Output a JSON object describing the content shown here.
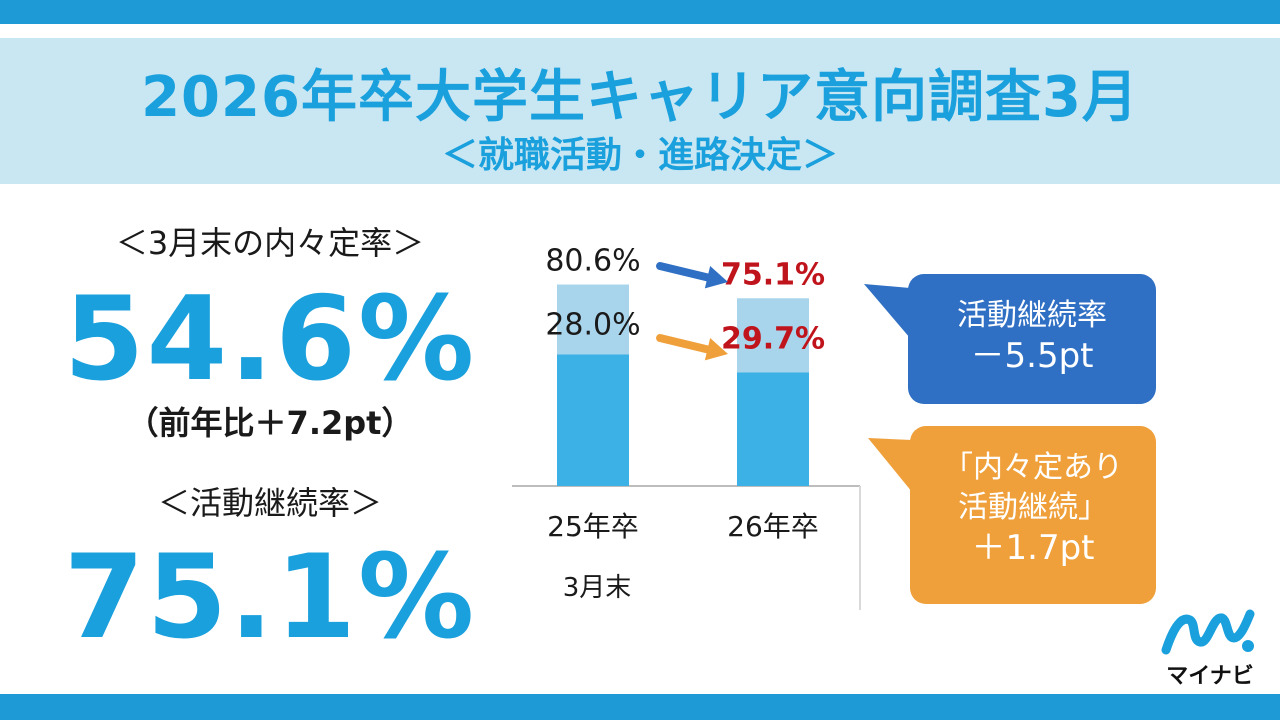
{
  "header": {
    "title": "2026年卒大学生キャリア意向調査3月",
    "subtitle": "＜就職活動・進路決定＞"
  },
  "left": {
    "naitei_label": "＜3月末の内々定率＞",
    "naitei_value": "54.6%",
    "naitei_yoy": "（前年比＋7.2pt）",
    "katsudo_label": "＜活動継続率＞",
    "katsudo_value": "75.1%"
  },
  "chart_data": {
    "type": "bar",
    "categories": [
      "25年卒",
      "26年卒"
    ],
    "xlabel": "3月末",
    "series": [
      {
        "values": [
          80.6,
          75.1
        ]
      },
      {
        "values": [
          28.0,
          29.7
        ]
      }
    ],
    "value_labels": {
      "total": [
        "80.6%",
        "75.1%"
      ],
      "inner": [
        "28.0%",
        "29.7%"
      ]
    },
    "colors": {
      "bar_dark": "#3cb1e6",
      "bar_light": "#a9d5ec",
      "label_prev": "#1a1a1a",
      "label_curr": "#c0141c",
      "arrow_total": "#2f6fc4",
      "arrow_inner": "#f0a03a"
    }
  },
  "callouts": {
    "blue": {
      "line1": "活動継続率",
      "line2": "－5.5pt",
      "color": "#2f6fc4"
    },
    "orange": {
      "line1": "「内々定あり",
      "line2": "活動継続」",
      "line3": "＋1.7pt",
      "color": "#f0a03a"
    }
  },
  "logo": {
    "text": "マイナビ",
    "icon": "mynavi-logo-icon"
  }
}
